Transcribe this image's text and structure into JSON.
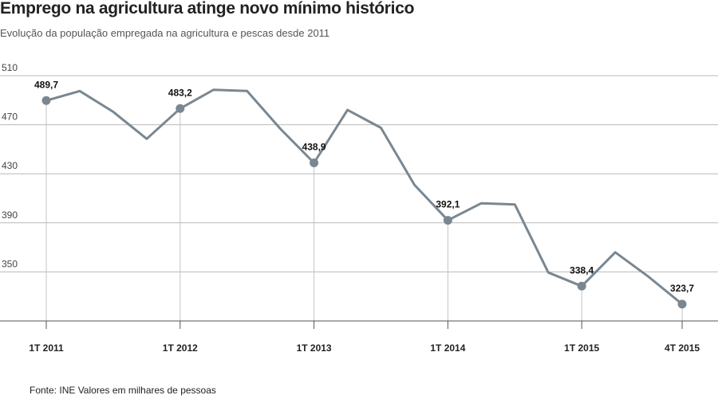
{
  "header": {
    "title": "Emprego na agricultura atinge novo mínimo histórico",
    "subtitle": "Evolução da população empregada na agricultura e pescas desde 2011"
  },
  "footer": {
    "source": "Fonte: INE  Valores em milhares de pessoas"
  },
  "colors": {
    "line": "#7a8791",
    "marker": "#7a8791",
    "grid": "#b9b9b9",
    "axis": "#555555"
  },
  "chart_data": {
    "type": "line",
    "title": "Emprego na agricultura atinge novo mínimo histórico",
    "subtitle": "Evolução da população empregada na agricultura e pescas desde 2011",
    "xlabel": "",
    "ylabel": "",
    "ylim": [
      310,
      510
    ],
    "yticks": [
      350,
      390,
      430,
      470,
      510
    ],
    "grid": "horizontal",
    "x": [
      "1T 2011",
      "2T 2011",
      "3T 2011",
      "4T 2011",
      "1T 2012",
      "2T 2012",
      "3T 2012",
      "4T 2012",
      "1T 2013",
      "2T 2013",
      "3T 2013",
      "4T 2013",
      "1T 2014",
      "2T 2014",
      "3T 2014",
      "4T 2014",
      "1T 2015",
      "2T 2015",
      "3T 2015",
      "4T 2015"
    ],
    "xticks": [
      "1T 2011",
      "1T 2012",
      "1T 2013",
      "1T 2014",
      "1T 2015",
      "4T 2015"
    ],
    "series": [
      {
        "values": [
          489.7,
          497.5,
          480.5,
          458.5,
          483.2,
          498.5,
          497.5,
          466.5,
          438.9,
          482.0,
          467.5,
          421.0,
          392.1,
          406.0,
          405.0,
          349.5,
          338.4,
          366.0,
          346.0,
          323.7
        ]
      }
    ],
    "annotations": [
      {
        "x": "1T 2011",
        "label": "489,7"
      },
      {
        "x": "1T 2012",
        "label": "483,2"
      },
      {
        "x": "1T 2013",
        "label": "438,9"
      },
      {
        "x": "1T 2014",
        "label": "392,1"
      },
      {
        "x": "1T 2015",
        "label": "338,4"
      },
      {
        "x": "4T 2015",
        "label": "323,7"
      }
    ]
  }
}
